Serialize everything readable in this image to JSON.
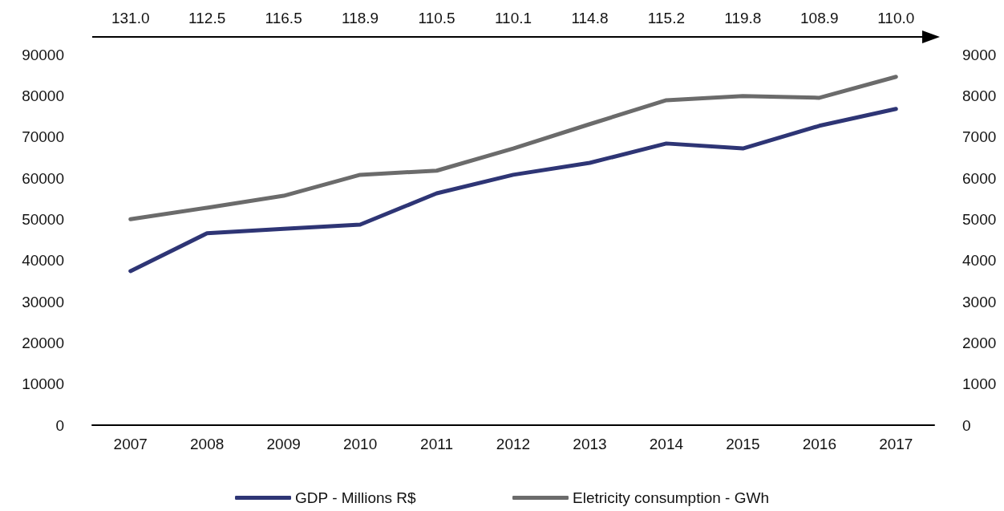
{
  "chart_data": {
    "type": "line",
    "categories": [
      "2007",
      "2008",
      "2009",
      "2010",
      "2011",
      "2012",
      "2013",
      "2014",
      "2015",
      "2016",
      "2017"
    ],
    "series": [
      {
        "name": "GDP - Millions R$",
        "color": "#2e3575",
        "values": [
          37400,
          46600,
          47700,
          48700,
          56300,
          60800,
          63700,
          68400,
          67200,
          72700,
          76800
        ]
      },
      {
        "name": "Eletricity consumption - GWh",
        "color": "#6b6b6b",
        "axis": "y2",
        "values": [
          5000,
          5280,
          5570,
          6080,
          6180,
          6720,
          7310,
          7890,
          7990,
          7950,
          8460
        ]
      }
    ],
    "ylim": [
      0,
      90000
    ],
    "yticks": [
      0,
      10000,
      20000,
      30000,
      40000,
      50000,
      60000,
      70000,
      80000,
      90000
    ],
    "y2lim": [
      0,
      9000
    ],
    "y2ticks": [
      0,
      1000,
      2000,
      3000,
      4000,
      5000,
      6000,
      7000,
      8000,
      9000
    ],
    "annotations": [
      "131.0",
      "112.5",
      "116.5",
      "118.9",
      "110.5",
      "110.1",
      "114.8",
      "115.2",
      "119.8",
      "108.9",
      "110.0"
    ],
    "grid": false,
    "legend": "bottom",
    "marker": "none",
    "line_style": "solid"
  }
}
